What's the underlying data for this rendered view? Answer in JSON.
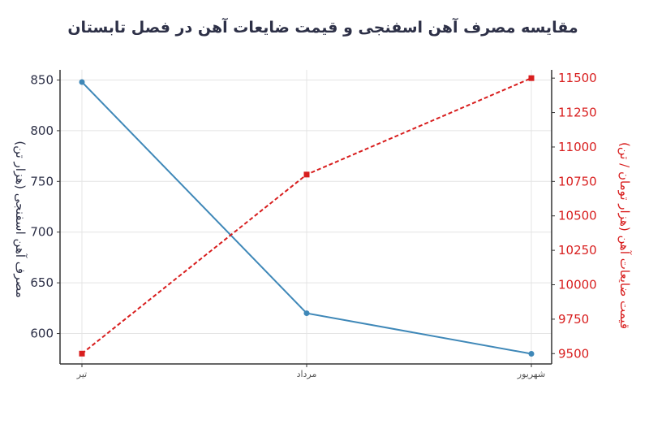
{
  "chart_data": {
    "type": "line",
    "title": "مقایسه مصرف آهن اسفنجی و قیمت ضایعات آهن در فصل تابستان",
    "xlabel": "",
    "categories": [
      "تیر",
      "مرداد",
      "شهریور"
    ],
    "y_left": {
      "label": "مصرف آهن اسفنجی (هزار تن)",
      "ylim": [
        570,
        860
      ],
      "ticks": [
        600,
        650,
        700,
        750,
        800,
        850
      ]
    },
    "y_right": {
      "label": "قیمت ضایعات آهن (هزار تومان / تن)",
      "ylim": [
        9425,
        11560
      ],
      "ticks": [
        9500,
        9750,
        10000,
        10250,
        10500,
        10750,
        11000,
        11250,
        11500
      ]
    },
    "series": [
      {
        "values": [
          848,
          620,
          580
        ],
        "axis": "left",
        "color": "#3f88b8",
        "style": "solid"
      },
      {
        "values": [
          9500,
          10800,
          11500
        ],
        "axis": "right",
        "color": "#d81e1e",
        "style": "dashed"
      }
    ],
    "grid": true
  }
}
